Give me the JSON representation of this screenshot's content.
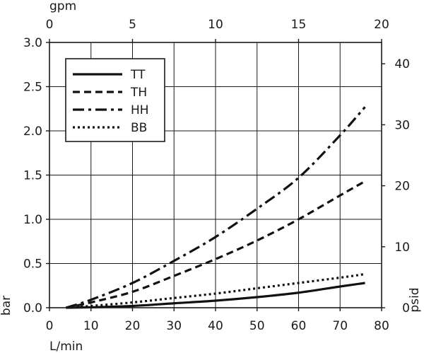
{
  "chart_data": {
    "type": "line",
    "xlabel": "L/min",
    "ylabel": "bar",
    "x2label": "gpm",
    "y2label": "psid",
    "xlim": [
      0,
      80
    ],
    "ylim": [
      0,
      3.0
    ],
    "x2lim": [
      0,
      20
    ],
    "y2lim": [
      0,
      43.5
    ],
    "x_ticks": [
      "0",
      "10",
      "20",
      "30",
      "40",
      "50",
      "60",
      "70",
      "80"
    ],
    "y_ticks": [
      "0.0",
      "0.5",
      "1.0",
      "1.5",
      "2.0",
      "2.5",
      "3.0"
    ],
    "x2_ticks": [
      "0",
      "5",
      "10",
      "15",
      "20"
    ],
    "y2_ticks": [
      "0",
      "10",
      "20",
      "30",
      "40"
    ],
    "grid": true,
    "legend_position": "top-left",
    "series": [
      {
        "name": "TT",
        "style": "solid",
        "x": [
          4,
          10,
          20,
          30,
          40,
          50,
          60,
          70,
          76
        ],
        "y": [
          0.0,
          0.005,
          0.02,
          0.05,
          0.08,
          0.12,
          0.17,
          0.24,
          0.28
        ]
      },
      {
        "name": "TH",
        "style": "dashed",
        "x": [
          4,
          10,
          20,
          30,
          40,
          50,
          60,
          70,
          76
        ],
        "y": [
          0.0,
          0.06,
          0.18,
          0.36,
          0.55,
          0.76,
          1.0,
          1.27,
          1.43
        ]
      },
      {
        "name": "HH",
        "style": "dashdot",
        "x": [
          4,
          10,
          20,
          30,
          40,
          50,
          60,
          70,
          76
        ],
        "y": [
          0.0,
          0.09,
          0.28,
          0.53,
          0.8,
          1.12,
          1.47,
          1.95,
          2.27
        ]
      },
      {
        "name": "BB",
        "style": "dotted",
        "x": [
          4,
          10,
          20,
          30,
          40,
          50,
          60,
          70,
          76
        ],
        "y": [
          0.0,
          0.02,
          0.06,
          0.11,
          0.16,
          0.22,
          0.28,
          0.34,
          0.38
        ]
      }
    ]
  }
}
